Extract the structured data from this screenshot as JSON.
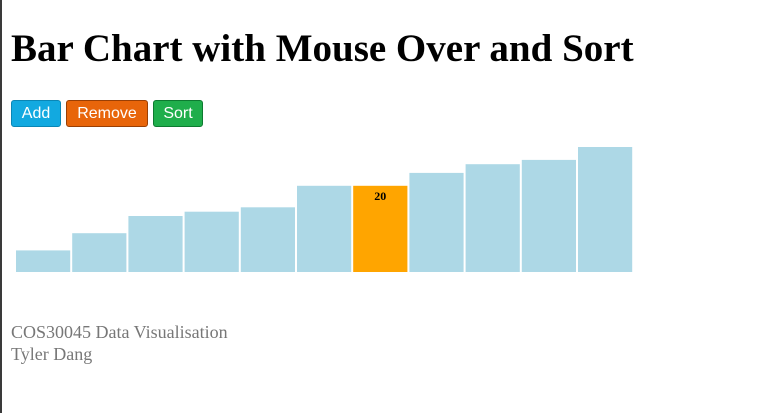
{
  "page": {
    "title": "Bar Chart with Mouse Over and Sort"
  },
  "toolbar": {
    "add_label": "Add",
    "remove_label": "Remove",
    "sort_label": "Sort"
  },
  "colors": {
    "add_button": "#12a9e0",
    "add_button_border": "#0a86b5",
    "remove_button": "#e8650a",
    "remove_button_border": "#9a3f04",
    "sort_button": "#1fae4b",
    "sort_button_border": "#0d7a30",
    "bar": "#add8e6",
    "bar_highlight": "#ffa500",
    "bar_label": "#000000"
  },
  "chart_data": {
    "type": "bar",
    "sorted_ascending": true,
    "values": [
      5,
      9,
      13,
      14,
      15,
      20,
      20,
      23,
      25,
      26,
      29
    ],
    "hovered_index": 6,
    "value_label": "20",
    "ylim": [
      0,
      29
    ]
  },
  "footer": {
    "course": "COS30045 Data Visualisation",
    "author": "Tyler Dang"
  }
}
